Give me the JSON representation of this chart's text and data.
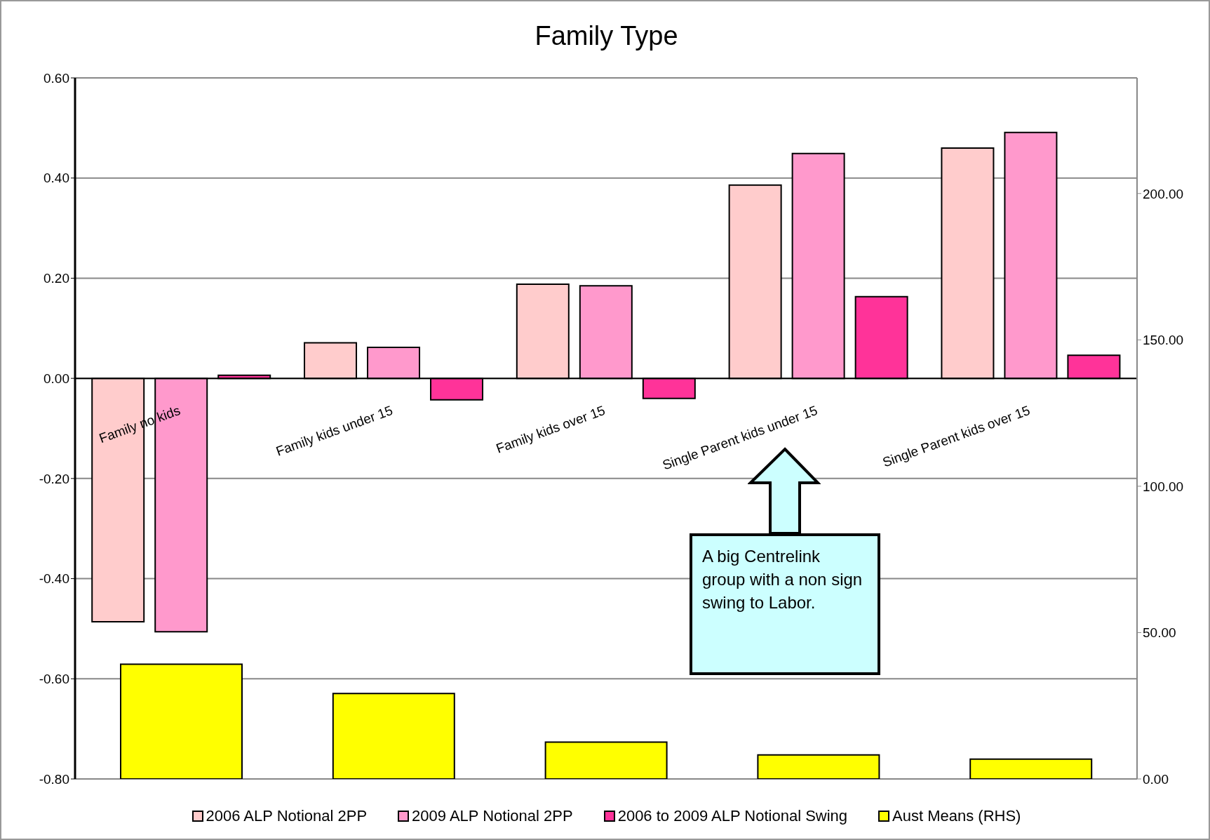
{
  "chart_data": {
    "type": "bar",
    "title": "Family Type",
    "categories": [
      "Family no kids",
      "Family kids under 15",
      "Family kids over 15",
      "Single Parent kids under 15",
      "Single Parent kids over 15"
    ],
    "series": [
      {
        "name": "2006 ALP Notional  2PP",
        "color": "#ffcccc",
        "values": [
          -0.486,
          0.071,
          0.188,
          0.386,
          0.46
        ]
      },
      {
        "name": "2009 ALP Notional  2PP",
        "color": "#ff99cc",
        "values": [
          -0.506,
          0.062,
          0.185,
          0.449,
          0.491
        ]
      },
      {
        "name": "2006 to 2009 ALP Notional  Swing",
        "color": "#ff3399",
        "values": [
          0.006,
          -0.043,
          -0.04,
          0.163,
          0.046
        ]
      },
      {
        "name": "Aust Means (RHS)",
        "color": "#ffff00",
        "axis": "y2",
        "values": [
          39.2,
          29.2,
          12.6,
          8.2,
          6.8
        ]
      }
    ],
    "ylim": [
      -0.8,
      0.6
    ],
    "yticks": [
      {
        "value": -0.8,
        "label": "-0.80"
      },
      {
        "value": -0.6,
        "label": "-0.60"
      },
      {
        "value": -0.4,
        "label": "-0.40"
      },
      {
        "value": -0.2,
        "label": "-0.20"
      },
      {
        "value": 0,
        "label": "0.00"
      },
      {
        "value": 0.2,
        "label": "0.20"
      },
      {
        "value": 0.4,
        "label": "0.40"
      },
      {
        "value": 0.6,
        "label": "0.60"
      }
    ],
    "y2lim": [
      0,
      239.5
    ],
    "y2ticks": [
      {
        "value": 0,
        "label": "0.00"
      },
      {
        "value": 50,
        "label": "50.00"
      },
      {
        "value": 100,
        "label": "100.00"
      },
      {
        "value": 150,
        "label": "150.00"
      },
      {
        "value": 200,
        "label": "200.00"
      }
    ],
    "grid": "y",
    "legend": "bottom",
    "annotations": [
      "A big Centrelink group with a non sign swing to Labor."
    ]
  }
}
